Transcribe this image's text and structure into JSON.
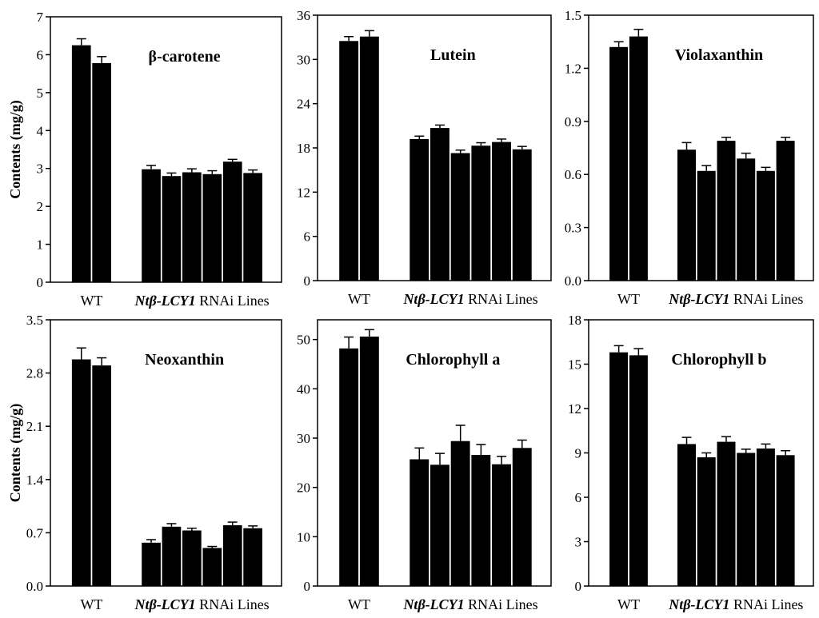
{
  "chart_data": [
    {
      "type": "bar",
      "title": "β-carotene",
      "ylabel": "Contents (mg/g)",
      "ylim": [
        0,
        7
      ],
      "yticks": [
        0,
        1,
        2,
        3,
        4,
        5,
        6,
        7
      ],
      "yticklabels": [
        "0",
        "1",
        "2",
        "3",
        "4",
        "5",
        "6",
        "7"
      ],
      "xlabel_wt": "WT",
      "xlabel_lines_italic": "Ntβ-LCY1",
      "xlabel_lines_rest": " RNAi Lines",
      "values": [
        6.25,
        5.78,
        2.98,
        2.8,
        2.9,
        2.85,
        3.18,
        2.88
      ],
      "errors": [
        0.17,
        0.17,
        0.1,
        0.08,
        0.09,
        0.09,
        0.06,
        0.08
      ]
    },
    {
      "type": "bar",
      "title": "Lutein",
      "ylabel": "",
      "ylim": [
        0,
        36
      ],
      "yticks": [
        0,
        6,
        12,
        18,
        24,
        30,
        36
      ],
      "yticklabels": [
        "0",
        "6",
        "12",
        "18",
        "24",
        "30",
        "36"
      ],
      "xlabel_wt": "WT",
      "xlabel_lines_italic": "Ntβ-LCY1",
      "xlabel_lines_rest": " RNAi Lines",
      "values": [
        32.5,
        33.1,
        19.2,
        20.7,
        17.3,
        18.3,
        18.8,
        17.8
      ],
      "errors": [
        0.6,
        0.8,
        0.4,
        0.4,
        0.4,
        0.4,
        0.4,
        0.4
      ]
    },
    {
      "type": "bar",
      "title": "Violaxanthin",
      "ylabel": "",
      "ylim": [
        0,
        1.5
      ],
      "yticks": [
        0,
        0.3,
        0.6,
        0.9,
        1.2,
        1.5
      ],
      "yticklabels": [
        "0.0",
        "0.3",
        "0.6",
        "0.9",
        "1.2",
        "1.5"
      ],
      "xlabel_wt": "WT",
      "xlabel_lines_italic": "Ntβ-LCY1",
      "xlabel_lines_rest": " RNAi Lines",
      "values": [
        1.32,
        1.38,
        0.74,
        0.62,
        0.79,
        0.69,
        0.62,
        0.79
      ],
      "errors": [
        0.03,
        0.04,
        0.04,
        0.03,
        0.02,
        0.03,
        0.02,
        0.02
      ]
    },
    {
      "type": "bar",
      "title": "Neoxanthin",
      "ylabel": "Contents (mg/g)",
      "ylim": [
        0,
        3.5
      ],
      "yticks": [
        0,
        0.7,
        1.4,
        2.1,
        2.8,
        3.5
      ],
      "yticklabels": [
        "0.0",
        "0.7",
        "1.4",
        "2.1",
        "2.8",
        "3.5"
      ],
      "xlabel_wt": "WT",
      "xlabel_lines_italic": "Ntβ-LCY1",
      "xlabel_lines_rest": " RNAi Lines",
      "values": [
        2.98,
        2.9,
        0.57,
        0.78,
        0.73,
        0.5,
        0.8,
        0.76
      ],
      "errors": [
        0.15,
        0.1,
        0.04,
        0.04,
        0.03,
        0.02,
        0.04,
        0.03
      ]
    },
    {
      "type": "bar",
      "title": "Chlorophyll a",
      "ylabel": "",
      "ylim": [
        0,
        54
      ],
      "yticks": [
        0,
        10,
        20,
        30,
        40,
        50
      ],
      "yticklabels": [
        "0",
        "10",
        "20",
        "30",
        "40",
        "50"
      ],
      "xlabel_wt": "WT",
      "xlabel_lines_italic": "Ntβ-LCY1",
      "xlabel_lines_rest": " RNAi Lines",
      "values": [
        48.2,
        50.6,
        25.7,
        24.6,
        29.4,
        26.6,
        24.7,
        28.0
      ],
      "errors": [
        2.3,
        1.4,
        2.3,
        2.3,
        3.2,
        2.1,
        1.6,
        1.6
      ]
    },
    {
      "type": "bar",
      "title": "Chlorophyll b",
      "ylabel": "",
      "ylim": [
        0,
        18
      ],
      "yticks": [
        0,
        3,
        6,
        9,
        12,
        15,
        18
      ],
      "yticklabels": [
        "0",
        "3",
        "6",
        "9",
        "12",
        "15",
        "18"
      ],
      "xlabel_wt": "WT",
      "xlabel_lines_italic": "Ntβ-LCY1",
      "xlabel_lines_rest": " RNAi Lines",
      "values": [
        15.8,
        15.6,
        9.6,
        8.7,
        9.75,
        9.0,
        9.3,
        8.85
      ],
      "errors": [
        0.45,
        0.45,
        0.45,
        0.3,
        0.35,
        0.25,
        0.3,
        0.3
      ]
    }
  ]
}
